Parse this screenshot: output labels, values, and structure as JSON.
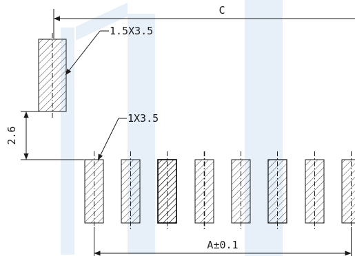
{
  "drawing": {
    "dim_overall": "C",
    "dim_pitch_total": "A±0.1",
    "dim_offset": "2.6",
    "callout_large_pad": "1.5X3.5",
    "callout_small_pad": "1X3.5"
  },
  "pads": {
    "large_pad_count": 1,
    "small_pad_count_visible": 8
  },
  "colors": {
    "line": "#1a1a1a",
    "watermark": "#dde9f6"
  }
}
